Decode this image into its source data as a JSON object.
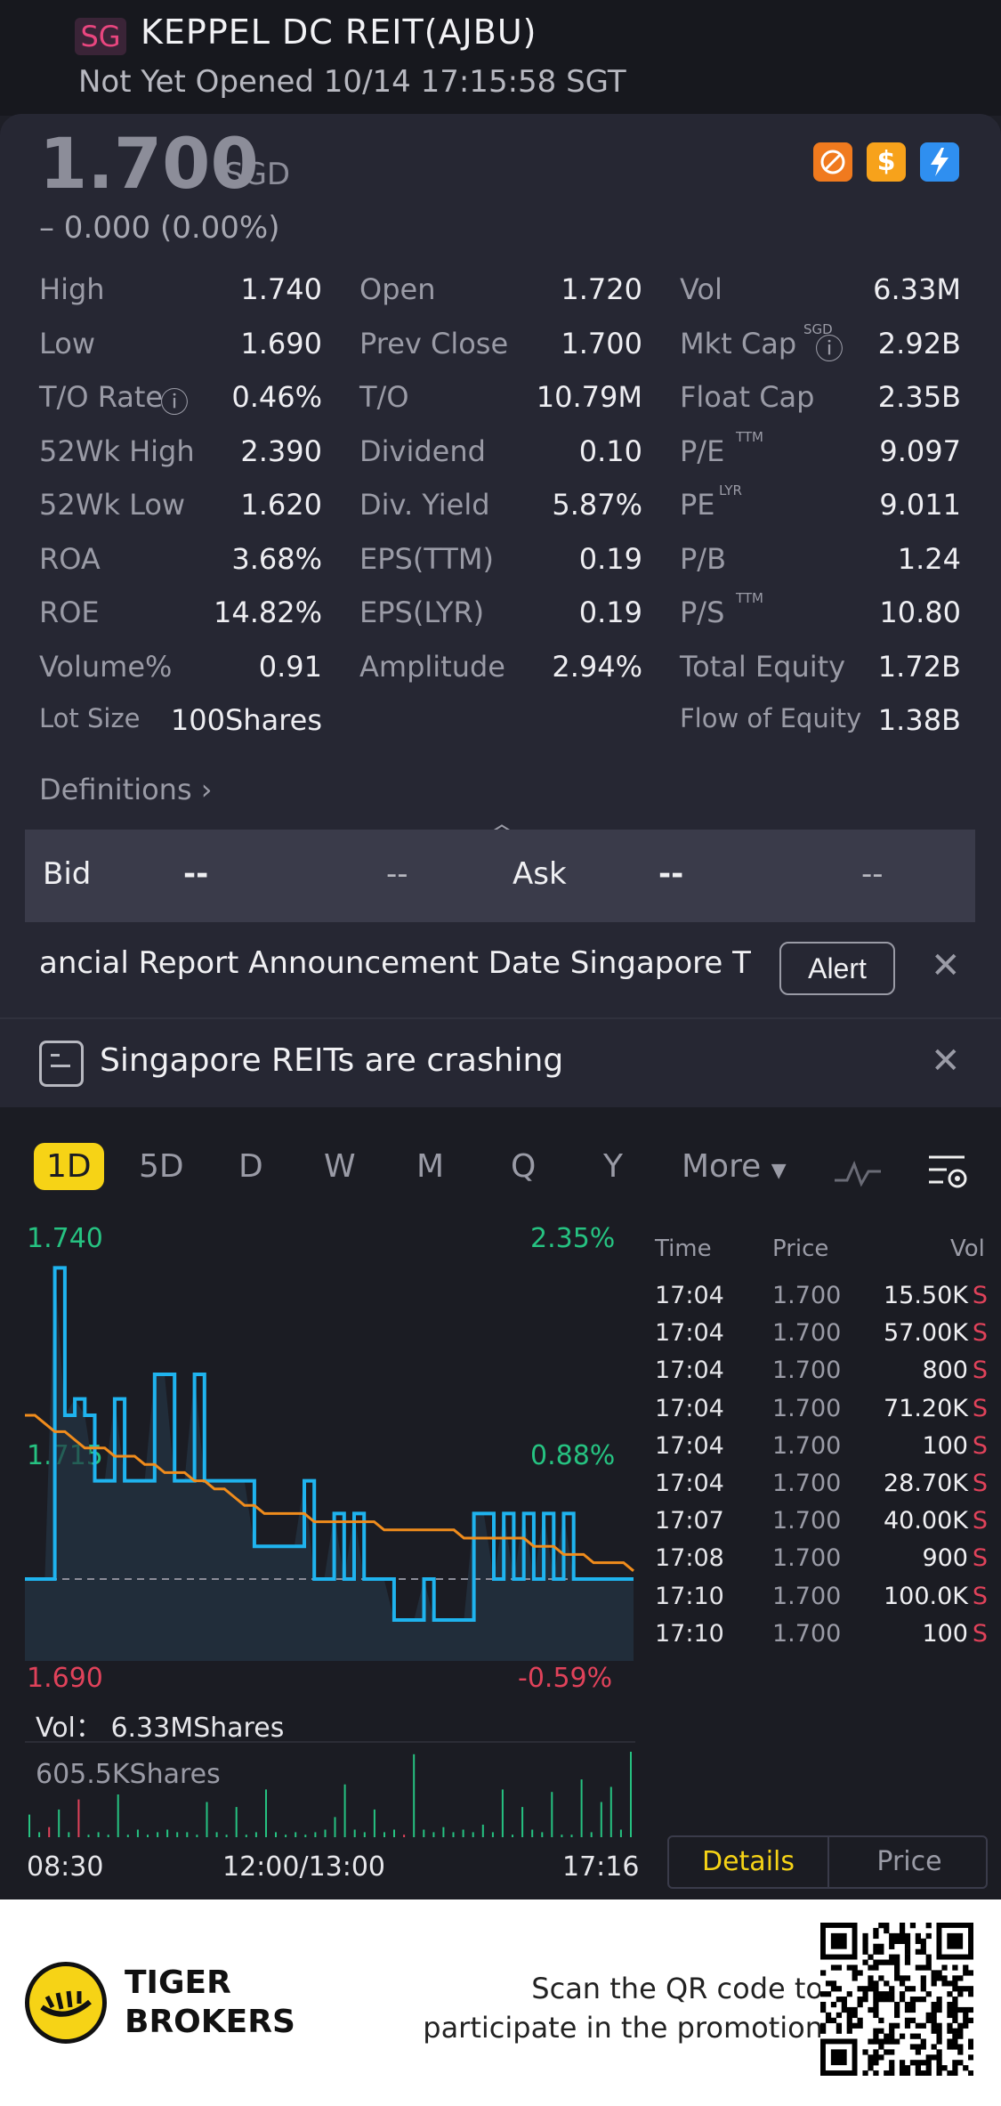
{
  "header": {
    "market_badge": "SG",
    "title": "KEPPEL DC REIT(AJBU)",
    "status": "Not Yet Opened 10/14 17:15:58 SGT"
  },
  "quote": {
    "price": "1.700",
    "currency": "SGD",
    "change": "– 0.000 (0.00%)",
    "icons": [
      "no-short-icon",
      "dollar-icon",
      "flash-icon"
    ]
  },
  "stats": {
    "col1": [
      {
        "label": "High",
        "value": "1.740"
      },
      {
        "label": "Low",
        "value": "1.690"
      },
      {
        "label": "T/O Rate",
        "value": "0.46%"
      },
      {
        "label": "52Wk High",
        "value": "2.390"
      },
      {
        "label": "52Wk Low",
        "value": "1.620"
      },
      {
        "label": "ROA",
        "value": "3.68%"
      },
      {
        "label": "ROE",
        "value": "14.82%"
      },
      {
        "label": "Volume%",
        "value": "0.91"
      },
      {
        "label": "Lot Size",
        "value": "100Shares"
      }
    ],
    "col2": [
      {
        "label": "Open",
        "value": "1.720"
      },
      {
        "label": "Prev Close",
        "value": "1.700"
      },
      {
        "label": "T/O",
        "value": "10.79M"
      },
      {
        "label": "Dividend",
        "value": "0.10"
      },
      {
        "label": "Div. Yield",
        "value": "5.87%"
      },
      {
        "label": "EPS(TTM)",
        "value": "0.19"
      },
      {
        "label": "EPS(LYR)",
        "value": "0.19"
      },
      {
        "label": "Amplitude",
        "value": "2.94%"
      }
    ],
    "col3": [
      {
        "label": "Vol",
        "value": "6.33M",
        "sup": ""
      },
      {
        "label": "Mkt Cap",
        "value": "2.92B",
        "sup": "SGD"
      },
      {
        "label": "Float Cap",
        "value": "2.35B",
        "sup": ""
      },
      {
        "label": "P/E",
        "value": "9.097",
        "sup": "TTM"
      },
      {
        "label": "PE",
        "value": "9.011",
        "sup": "LYR"
      },
      {
        "label": "P/B",
        "value": "1.24",
        "sup": ""
      },
      {
        "label": "P/S",
        "value": "10.80",
        "sup": "TTM"
      },
      {
        "label": "Total Equity",
        "value": "1.72B",
        "sup": ""
      },
      {
        "label": "Flow of Equity",
        "value": "1.38B",
        "sup": ""
      }
    ]
  },
  "definitions_label": "Definitions",
  "bidask": {
    "bid_label": "Bid",
    "bid_price": "--",
    "bid_size": "--",
    "ask_label": "Ask",
    "ask_price": "--",
    "ask_size": "--"
  },
  "alert_bar": {
    "text": "ancial Report Announcement Date Singapore Tir",
    "button": "Alert"
  },
  "news_bar": {
    "text": "Singapore REITs are crashing"
  },
  "tabs": [
    "1D",
    "5D",
    "D",
    "W",
    "M",
    "Q",
    "Y",
    "More"
  ],
  "active_tab": "1D",
  "chart_labels": {
    "high": "1.740",
    "mid": "1.715",
    "low": "1.690",
    "high_pct": "2.35%",
    "mid_pct": "0.88%",
    "low_pct": "-0.59%",
    "vol_label": "Vol：",
    "vol_value": "6.33MShares",
    "vol_max": "605.5KShares",
    "x_start": "08:30",
    "x_mid": "12:00/13:00",
    "x_end": "17:16"
  },
  "chart_data": {
    "type": "line",
    "ylim": [
      1.69,
      1.74
    ],
    "prev_close": 1.7,
    "series": [
      {
        "color": "#1fb3ee",
        "values": [
          1.7,
          1.7,
          1.7,
          1.738,
          1.72,
          1.722,
          1.72,
          1.712,
          1.712,
          1.722,
          1.712,
          1.712,
          1.712,
          1.725,
          1.725,
          1.712,
          1.712,
          1.725,
          1.712,
          1.712,
          1.712,
          1.712,
          1.712,
          1.704,
          1.704,
          1.704,
          1.704,
          1.704,
          1.712,
          1.7,
          1.7,
          1.708,
          1.7,
          1.708,
          1.7,
          1.7,
          1.7,
          1.695,
          1.695,
          1.695,
          1.7,
          1.695,
          1.695,
          1.695,
          1.695,
          1.708,
          1.708,
          1.7,
          1.708,
          1.7,
          1.708,
          1.7,
          1.708,
          1.7,
          1.708,
          1.7,
          1.7,
          1.7,
          1.7,
          1.7,
          1.7,
          1.7
        ]
      },
      {
        "color": "#f08c1c",
        "values": [
          1.72,
          1.72,
          1.719,
          1.718,
          1.718,
          1.717,
          1.716,
          1.716,
          1.716,
          1.715,
          1.715,
          1.715,
          1.714,
          1.714,
          1.713,
          1.713,
          1.713,
          1.712,
          1.712,
          1.711,
          1.711,
          1.71,
          1.709,
          1.709,
          1.708,
          1.708,
          1.708,
          1.708,
          1.708,
          1.707,
          1.707,
          1.707,
          1.707,
          1.707,
          1.707,
          1.707,
          1.706,
          1.706,
          1.706,
          1.706,
          1.706,
          1.706,
          1.706,
          1.706,
          1.705,
          1.705,
          1.705,
          1.705,
          1.705,
          1.705,
          1.705,
          1.704,
          1.704,
          1.704,
          1.703,
          1.703,
          1.703,
          1.702,
          1.702,
          1.702,
          1.702,
          1.701
        ]
      }
    ],
    "volume": [
      9,
      2,
      4,
      11,
      2,
      15,
      1,
      2,
      1,
      17,
      1,
      3,
      1,
      2,
      3,
      2,
      2,
      1,
      14,
      2,
      1,
      12,
      1,
      2,
      19,
      2,
      1,
      2,
      1,
      2,
      3,
      8,
      21,
      3,
      2,
      11,
      2,
      3,
      1,
      33,
      3,
      2,
      4,
      2,
      3,
      2,
      5,
      2,
      19,
      1,
      12,
      3,
      2,
      18,
      1,
      1,
      23,
      2,
      14,
      20,
      3,
      34
    ]
  },
  "time_trades": {
    "headers": [
      "Time",
      "Price",
      "Vol"
    ],
    "rows": [
      {
        "time": "17:04",
        "price": "1.700",
        "vol": "15.50K",
        "side": "S"
      },
      {
        "time": "17:04",
        "price": "1.700",
        "vol": "57.00K",
        "side": "S"
      },
      {
        "time": "17:04",
        "price": "1.700",
        "vol": "800",
        "side": "S"
      },
      {
        "time": "17:04",
        "price": "1.700",
        "vol": "71.20K",
        "side": "S"
      },
      {
        "time": "17:04",
        "price": "1.700",
        "vol": "100",
        "side": "S"
      },
      {
        "time": "17:04",
        "price": "1.700",
        "vol": "28.70K",
        "side": "S"
      },
      {
        "time": "17:07",
        "price": "1.700",
        "vol": "40.00K",
        "side": "S"
      },
      {
        "time": "17:08",
        "price": "1.700",
        "vol": "900",
        "side": "S"
      },
      {
        "time": "17:10",
        "price": "1.700",
        "vol": "100.0K",
        "side": "S"
      },
      {
        "time": "17:10",
        "price": "1.700",
        "vol": "100",
        "side": "S"
      }
    ],
    "btn_details": "Details",
    "btn_price": "Price"
  },
  "footer": {
    "brand_line1": "TIGER",
    "brand_line2": "BROKERS",
    "promo_line1": "Scan the QR code to",
    "promo_line2": "participate in the promotion"
  }
}
